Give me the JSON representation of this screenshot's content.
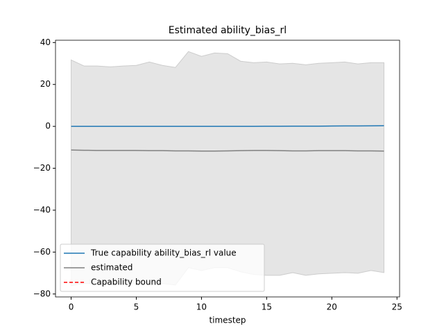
{
  "chart_data": {
    "type": "line",
    "title": "Estimated ability_bias_rl",
    "x_label": "timestep",
    "x": [
      0,
      1,
      2,
      3,
      4,
      5,
      6,
      7,
      8,
      9,
      10,
      11,
      12,
      13,
      14,
      15,
      16,
      17,
      18,
      19,
      20,
      21,
      22,
      23,
      24
    ],
    "series": [
      {
        "name": "True capability ability_bias_rl value",
        "color": "#1f77b4",
        "dash": "solid",
        "values": [
          0,
          0,
          0,
          0,
          0,
          0,
          0,
          0,
          0,
          0,
          0,
          0,
          0,
          0,
          0,
          0.05,
          0.05,
          0.1,
          0.1,
          0.1,
          0.15,
          0.2,
          0.2,
          0.25,
          0.3
        ]
      },
      {
        "name": "estimated",
        "color": "#808080",
        "dash": "solid",
        "values": [
          -11.3,
          -11.4,
          -11.5,
          -11.5,
          -11.5,
          -11.5,
          -11.6,
          -11.6,
          -11.7,
          -11.7,
          -11.8,
          -11.8,
          -11.7,
          -11.6,
          -11.5,
          -11.5,
          -11.6,
          -11.7,
          -11.7,
          -11.6,
          -11.6,
          -11.6,
          -11.7,
          -11.7,
          -11.8
        ]
      },
      {
        "name": "Capability bound",
        "color": "#ff0000",
        "dash": "dashed",
        "values": [
          null,
          null,
          null,
          null,
          null,
          null,
          null,
          null,
          null,
          null,
          null,
          null,
          null,
          null,
          null,
          null,
          null,
          null,
          null,
          null,
          null,
          null,
          null,
          null,
          null
        ]
      }
    ],
    "band": {
      "color": "#cccccc",
      "upper": [
        31.7,
        28.8,
        28.8,
        28.4,
        28.8,
        29.1,
        30.7,
        29.1,
        28.1,
        35.7,
        33.4,
        35.0,
        34.7,
        31.1,
        30.4,
        30.7,
        29.8,
        30.1,
        29.4,
        30.1,
        30.4,
        30.7,
        29.8,
        30.4,
        30.4
      ],
      "lower": [
        -76.0,
        -75.0,
        -75.0,
        -75.5,
        -75.0,
        -75.0,
        -74.5,
        -75.0,
        -75.7,
        -67.4,
        -68.8,
        -67.4,
        -67.4,
        -69.4,
        -70.7,
        -71.1,
        -71.1,
        -69.8,
        -71.1,
        -70.4,
        -70.1,
        -69.8,
        -70.1,
        -68.8,
        -69.8
      ]
    },
    "xlim": [
      -1.2,
      25.2
    ],
    "ylim": [
      -81.4,
      41.1
    ],
    "xticks": [
      0,
      5,
      10,
      15,
      20,
      25
    ],
    "yticks": [
      {
        "value": -80,
        "label": "−80"
      },
      {
        "value": -60,
        "label": "−60"
      },
      {
        "value": -40,
        "label": "−40"
      },
      {
        "value": -20,
        "label": "−20"
      },
      0,
      20,
      40
    ],
    "legend": "lower left"
  }
}
